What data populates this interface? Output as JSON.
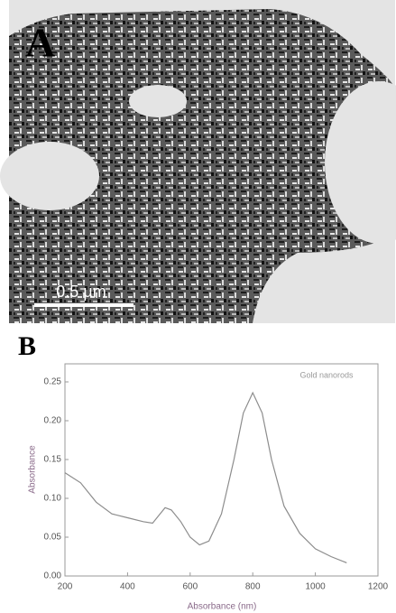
{
  "micrograph": {
    "label": "A",
    "scale_bar": "0.5 µm"
  },
  "chart_data": {
    "type": "line",
    "panel_label": "B",
    "x_label": "Absorbance (nm)",
    "y_label": "Absorbance",
    "x": [
      200,
      250,
      300,
      350,
      400,
      450,
      480,
      500,
      520,
      540,
      570,
      600,
      630,
      660,
      700,
      740,
      770,
      800,
      830,
      860,
      900,
      950,
      1000,
      1050,
      1100
    ],
    "series": [
      {
        "name": "Gold nanorods",
        "color": "#8c8c8c",
        "values": [
          0.133,
          0.12,
          0.095,
          0.08,
          0.075,
          0.07,
          0.068,
          0.078,
          0.088,
          0.085,
          0.07,
          0.05,
          0.04,
          0.045,
          0.08,
          0.15,
          0.21,
          0.236,
          0.21,
          0.15,
          0.09,
          0.055,
          0.035,
          0.025,
          0.017
        ]
      }
    ],
    "xlim": [
      200,
      1200
    ],
    "xticks": [
      200,
      400,
      600,
      800,
      1000,
      1200
    ],
    "ylim": [
      0,
      0.25
    ],
    "yticks": [
      {
        "value": 0,
        "label": "0.00"
      },
      0.05,
      {
        "value": 0.1,
        "label": "0.10"
      },
      0.15,
      {
        "value": 0.2,
        "label": "0.20"
      },
      0.25
    ]
  }
}
